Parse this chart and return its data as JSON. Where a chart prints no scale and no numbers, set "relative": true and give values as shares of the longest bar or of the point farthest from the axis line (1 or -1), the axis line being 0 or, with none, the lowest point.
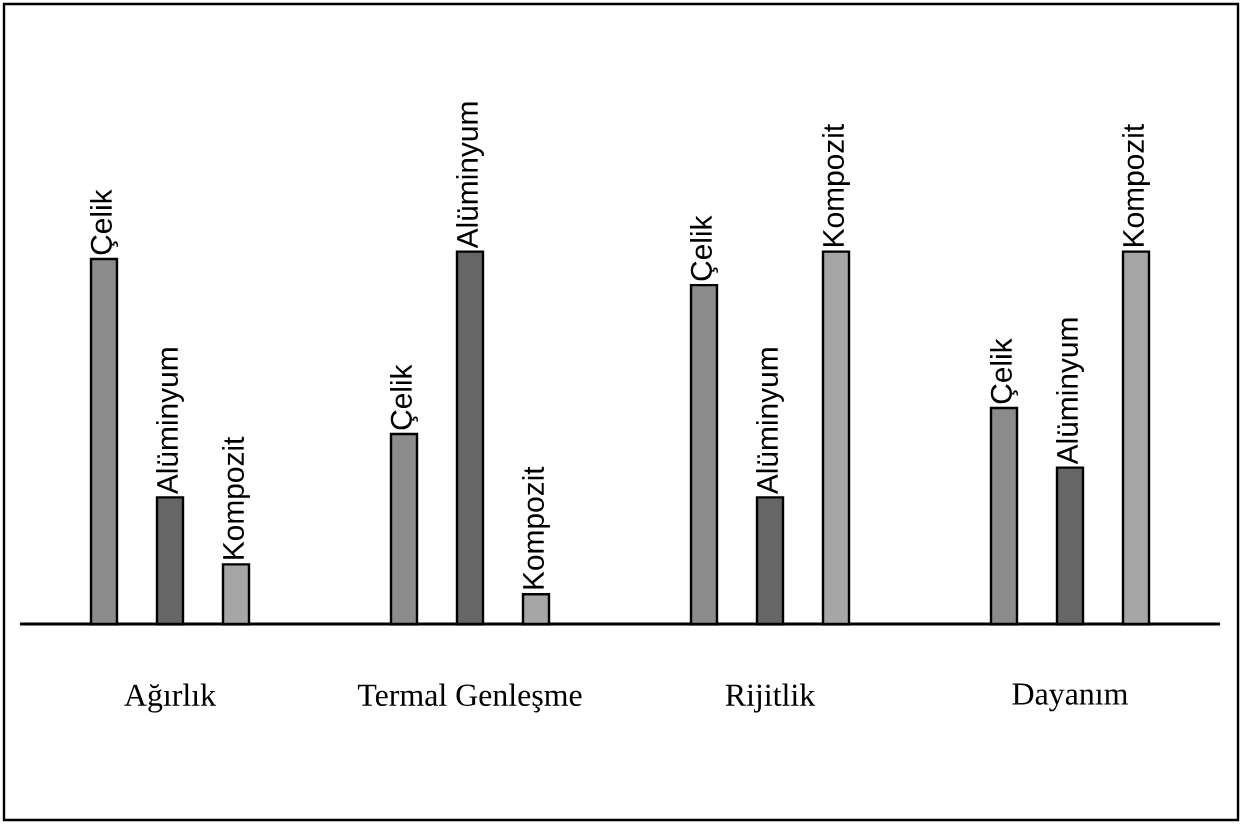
{
  "chart_data": {
    "type": "bar",
    "relative": true,
    "categories": [
      "Ağırlık",
      "Termal Genleşme",
      "Rijitlik",
      "Dayanım"
    ],
    "series": [
      {
        "name": "Çelik",
        "color": "#8c8c8c",
        "values": [
          0.98,
          0.51,
          0.91,
          0.58
        ]
      },
      {
        "name": "Alüminyum",
        "color": "#666666",
        "values": [
          0.34,
          1,
          0.34,
          0.42
        ]
      },
      {
        "name": "Kompozit",
        "color": "#a6a6a6",
        "values": [
          0.16,
          0.08,
          1,
          1
        ]
      }
    ]
  }
}
